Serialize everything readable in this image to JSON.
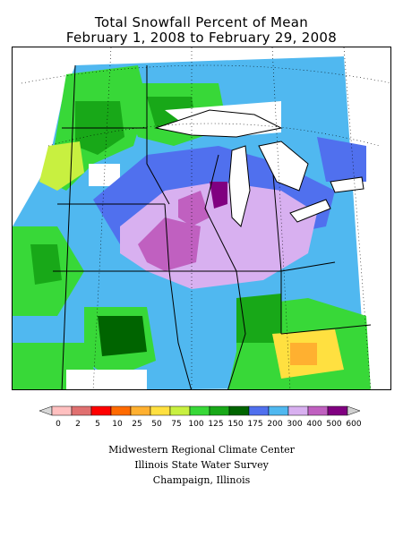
{
  "title": {
    "line1": "Total Snowfall Percent of Mean",
    "line2": "February 1, 2008 to February 29, 2008"
  },
  "legend": {
    "ticks": [
      "0",
      "2",
      "5",
      "10",
      "25",
      "50",
      "75",
      "100",
      "125",
      "150",
      "175",
      "200",
      "300",
      "400",
      "500",
      "600"
    ],
    "colors": [
      "#d8d8d8",
      "#ffc0c0",
      "#e07070",
      "#ff0000",
      "#ff6a00",
      "#ffb030",
      "#ffe040",
      "#c8f040",
      "#38d838",
      "#18a818",
      "#006400",
      "#5070ee",
      "#50b8f0",
      "#d8b0f0",
      "#c060c0",
      "#800080",
      "#d0d0d0"
    ]
  },
  "credits": {
    "line1": "Midwestern Regional Climate Center",
    "line2": "Illinois State Water Survey",
    "line3": "Champaign, Illinois"
  }
}
